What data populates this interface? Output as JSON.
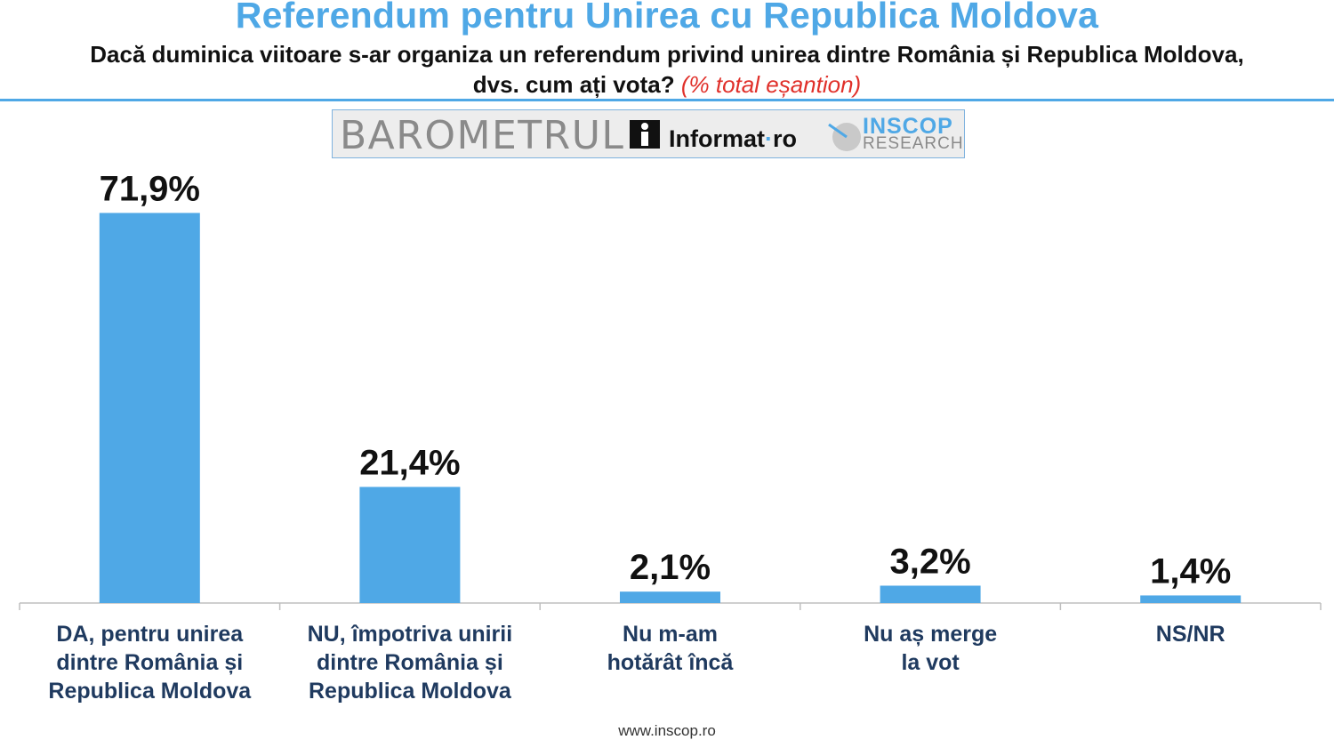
{
  "header": {
    "title": "Referendum pentru Unirea cu Republica Moldova",
    "subtitle": "Dacă duminica viitoare s-ar organiza un referendum privind unirea dintre România și Republica Moldova, dvs. cum ați vota?",
    "subtitle_note": "(% total eșantion)"
  },
  "logos": {
    "barometrul": "BAROMETRUL",
    "informat_main": "Informat",
    "informat_dot": "·",
    "informat_tld": "ro",
    "inscop": "INSCOP",
    "research": "RESEARCH"
  },
  "chart_data": {
    "type": "bar",
    "categories": [
      [
        "DA, pentru unirea",
        "dintre România și",
        "Republica Moldova"
      ],
      [
        "NU, împotriva unirii",
        "dintre România și",
        "Republica Moldova"
      ],
      [
        "Nu m-am",
        "hotărât încă"
      ],
      [
        "Nu aș merge",
        "la vot"
      ],
      [
        "NS/NR"
      ]
    ],
    "values": [
      71.9,
      21.4,
      2.1,
      3.2,
      1.4
    ],
    "labels": [
      "71,9%",
      "21,4%",
      "2,1%",
      "3,2%",
      "1,4%"
    ],
    "unit": "%",
    "ylim": [
      0,
      75
    ],
    "grid": false,
    "legend": "none"
  },
  "colors": {
    "bar": "#4fa8e6",
    "title": "#4fa8e6",
    "category_label": "#1f3a5f",
    "value_label": "#111111",
    "note": "#e0302a"
  },
  "footer": {
    "url": "www.inscop.ro"
  }
}
